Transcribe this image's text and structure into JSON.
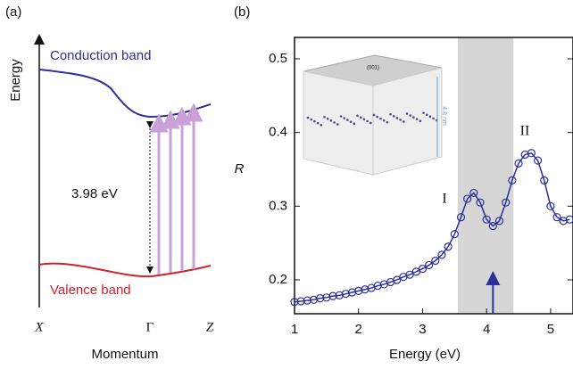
{
  "diagram": {
    "label": "(a)",
    "y_label": "Energy",
    "conduction": "Conduction band",
    "valence": "Valence band",
    "gap": "3.98 eV",
    "x_points": [
      "X",
      "Γ",
      "Z"
    ],
    "x_label": "Momentum"
  },
  "chart_data": {
    "type": "line",
    "label": "(b)",
    "x_label": "Energy (eV)",
    "y_label": "R",
    "x": [
      1.0,
      1.1,
      1.2,
      1.3,
      1.4,
      1.5,
      1.6,
      1.7,
      1.8,
      1.9,
      2.0,
      2.1,
      2.2,
      2.3,
      2.4,
      2.5,
      2.6,
      2.7,
      2.8,
      2.9,
      3.0,
      3.1,
      3.2,
      3.3,
      3.4,
      3.5,
      3.6,
      3.7,
      3.8,
      3.9,
      4.0,
      4.1,
      4.2,
      4.3,
      4.4,
      4.5,
      4.6,
      4.7,
      4.8,
      4.9,
      5.0,
      5.1,
      5.2,
      5.3
    ],
    "series": [
      {
        "color": "#2b2f99",
        "values": [
          0.17,
          0.171,
          0.172,
          0.173,
          0.175,
          0.176,
          0.178,
          0.179,
          0.181,
          0.183,
          0.185,
          0.187,
          0.189,
          0.192,
          0.194,
          0.197,
          0.2,
          0.204,
          0.207,
          0.211,
          0.215,
          0.22,
          0.226,
          0.234,
          0.245,
          0.262,
          0.285,
          0.31,
          0.318,
          0.305,
          0.282,
          0.273,
          0.28,
          0.305,
          0.335,
          0.358,
          0.37,
          0.372,
          0.362,
          0.335,
          0.3,
          0.285,
          0.28,
          0.282
        ]
      }
    ],
    "xlim": [
      1,
      5.35
    ],
    "ylim": [
      0.154,
      0.529
    ],
    "xticks": [
      1,
      2,
      3,
      4,
      5
    ],
    "yticks": [
      0.2,
      0.3,
      0.4,
      0.5
    ],
    "shaded": [
      3.55,
      4.42
    ],
    "arrow_x": 4.1,
    "annotations": [
      "I",
      "II"
    ],
    "inset": {
      "top": "(001)",
      "thickness": "4.8 nm"
    }
  }
}
